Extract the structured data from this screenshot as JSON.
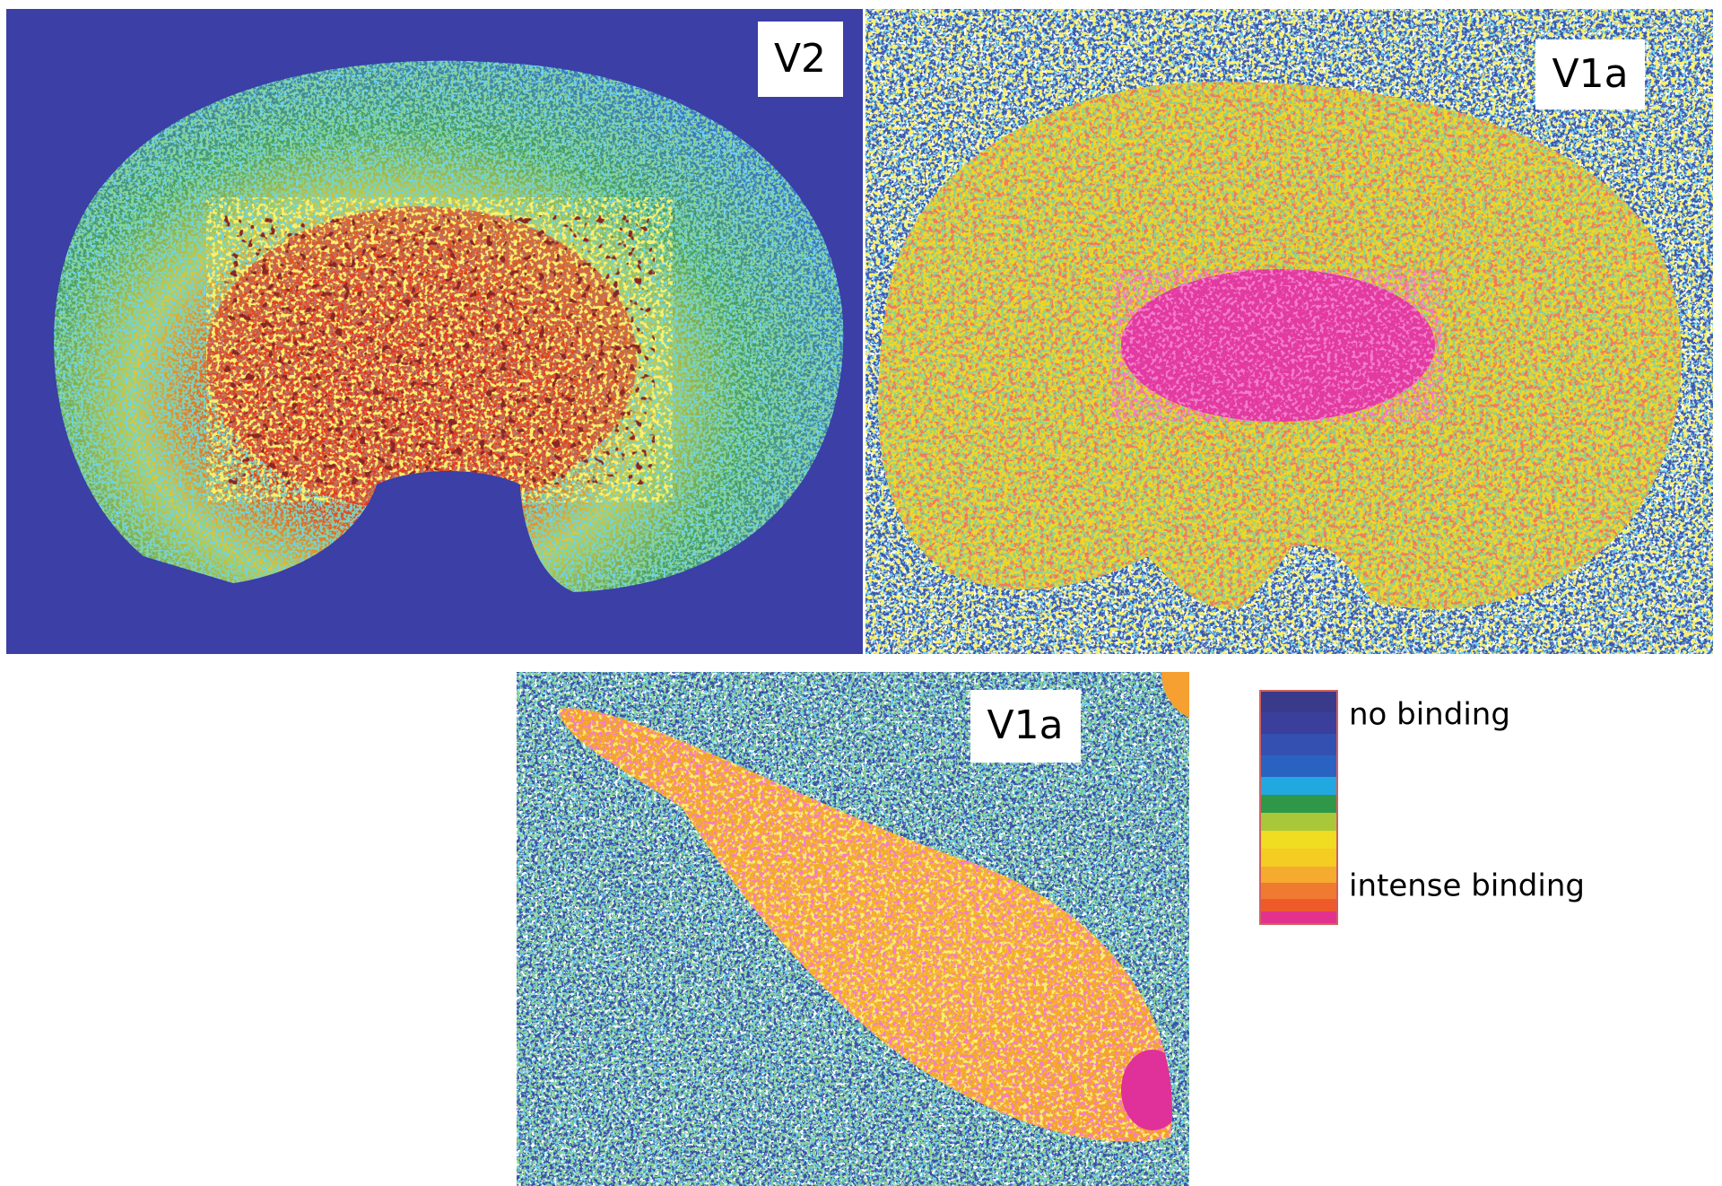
{
  "panels": [
    {
      "label": "V2"
    },
    {
      "label": "V1a"
    },
    {
      "label": "V1a"
    }
  ],
  "legend": {
    "low_label": "no binding",
    "high_label": "intense binding"
  }
}
